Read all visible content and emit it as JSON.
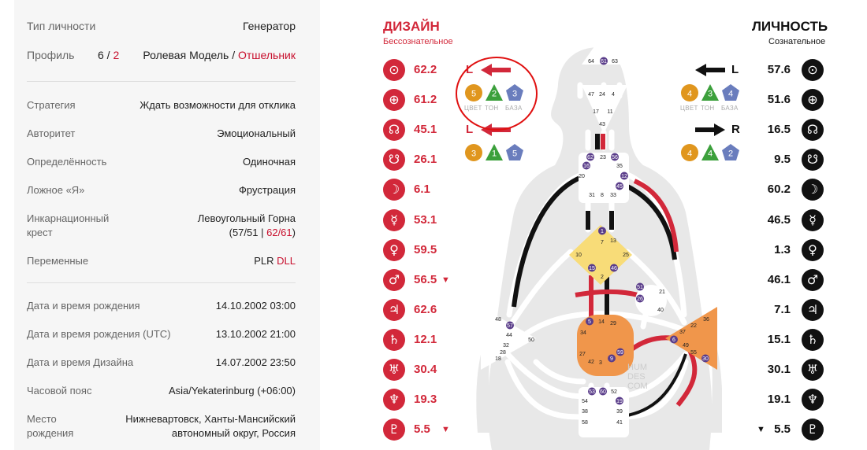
{
  "info": {
    "type_label": "Тип личности",
    "type_value": "Генератор",
    "profile_label": "Профиль",
    "profile_num_a": "6",
    "profile_slash": " / ",
    "profile_num_b": "2",
    "profile_name_a": "Ролевая Модель",
    "profile_name_sep": " / ",
    "profile_name_b": "Отшельник",
    "strategy_label": "Стратегия",
    "strategy_value": "Ждать возможности для отклика",
    "authority_label": "Авторитет",
    "authority_value": "Эмоциональный",
    "definition_label": "Определённость",
    "definition_value": "Одиночная",
    "notself_label": "Ложное «Я»",
    "notself_value": "Фрустрация",
    "cross_label_1": "Инкарнационный",
    "cross_label_2": "крест",
    "cross_value_1": "Левоугольный Горна",
    "cross_paren_open": "(",
    "cross_gates_a": "57/51",
    "cross_bar": " | ",
    "cross_gates_b": "62/61",
    "cross_paren_close": ")",
    "variables_label": "Переменные",
    "variables_a": "PLR",
    "variables_b": "DLL",
    "birth_label": "Дата и время рождения",
    "birth_value": "14.10.2002 03:00",
    "birth_utc_label": "Дата и время рождения (UTC)",
    "birth_utc_value": "13.10.2002 21:00",
    "design_time_label": "Дата и время Дизайна",
    "design_time_value": "14.07.2002 23:50",
    "tz_label": "Часовой пояс",
    "tz_value": "Asia/Yekaterinburg (+06:00)",
    "place_label_1": "Место",
    "place_label_2": "рождения",
    "place_value_1": "Нижневартовск, Ханты-Мансийский",
    "place_value_2": "автономный округ, Россия"
  },
  "design": {
    "title": "ДИЗАЙН",
    "subtitle": "Бессознательное",
    "color": "#d2283a",
    "planets": [
      {
        "icon": "sun-icon",
        "value": "62.2"
      },
      {
        "icon": "earth-icon",
        "value": "61.2"
      },
      {
        "icon": "north-node-icon",
        "value": "45.1"
      },
      {
        "icon": "south-node-icon",
        "value": "26.1"
      },
      {
        "icon": "moon-icon",
        "value": "6.1"
      },
      {
        "icon": "mercury-icon",
        "value": "53.1"
      },
      {
        "icon": "venus-icon",
        "value": "59.5"
      },
      {
        "icon": "mars-icon",
        "value": "56.5",
        "marker": "▼"
      },
      {
        "icon": "jupiter-icon",
        "value": "62.6"
      },
      {
        "icon": "saturn-icon",
        "value": "12.1"
      },
      {
        "icon": "uranus-icon",
        "value": "30.4"
      },
      {
        "icon": "neptune-icon",
        "value": "19.3"
      },
      {
        "icon": "pluto-icon",
        "value": "5.5",
        "marker": "▼"
      }
    ],
    "arrow_top": {
      "letter": "L",
      "color_num": "5",
      "tone_num": "2",
      "base_num": "3"
    },
    "arrow_bottom": {
      "letter": "L",
      "color_num": "3",
      "tone_num": "1",
      "base_num": "5"
    },
    "badge_labels": [
      "ЦВЕТ",
      "ТОН",
      "БАЗА"
    ]
  },
  "personality": {
    "title": "ЛИЧНОСТЬ",
    "subtitle": "Сознательное",
    "color": "#111111",
    "planets": [
      {
        "icon": "sun-icon",
        "value": "57.6"
      },
      {
        "icon": "earth-icon",
        "value": "51.6"
      },
      {
        "icon": "north-node-icon",
        "value": "16.5"
      },
      {
        "icon": "south-node-icon",
        "value": "9.5"
      },
      {
        "icon": "moon-icon",
        "value": "60.2"
      },
      {
        "icon": "mercury-icon",
        "value": "46.5"
      },
      {
        "icon": "venus-icon",
        "value": "1.3"
      },
      {
        "icon": "mars-icon",
        "value": "46.1"
      },
      {
        "icon": "jupiter-icon",
        "value": "7.1"
      },
      {
        "icon": "saturn-icon",
        "value": "15.1"
      },
      {
        "icon": "uranus-icon",
        "value": "30.1"
      },
      {
        "icon": "neptune-icon",
        "value": "19.1"
      },
      {
        "icon": "pluto-icon",
        "value": "5.5",
        "marker": "▼"
      }
    ],
    "arrow_top": {
      "letter": "L",
      "color_num": "4",
      "tone_num": "3",
      "base_num": "4"
    },
    "arrow_bottom": {
      "letter": "R",
      "color_num": "4",
      "tone_num": "4",
      "base_num": "2"
    },
    "badge_labels": [
      "ЦВЕТ",
      "ТОН",
      "БАЗА"
    ]
  },
  "bodygraph": {
    "watermark_1": "HUM",
    "watermark_2": "DES",
    "watermark_3": "COM",
    "colors": {
      "design": "#d2283a",
      "personality": "#111111",
      "sacral": "#f0964b",
      "g_center": "#f8dc78",
      "badge_orange": "#e0961e",
      "badge_green": "#3ca03c",
      "badge_blue": "#6a7dbd"
    },
    "head_gates": [
      "64",
      "61",
      "63"
    ],
    "ajna_gates": [
      "47",
      "24",
      "4",
      "17",
      "11",
      "43"
    ],
    "throat_gates": [
      "62",
      "23",
      "56",
      "16",
      "35",
      "20",
      "12",
      "45",
      "31",
      "8",
      "33"
    ],
    "g_gates": [
      "1",
      "7",
      "13",
      "10",
      "25",
      "15",
      "46",
      "2"
    ],
    "heart_gates": [
      "51",
      "21",
      "26",
      "40"
    ],
    "spleen_gates": [
      "48",
      "57",
      "44",
      "50",
      "32",
      "28",
      "18"
    ],
    "sacral_gates": [
      "5",
      "14",
      "29",
      "34",
      "27",
      "59",
      "42",
      "3",
      "9"
    ],
    "solar_gates": [
      "36",
      "22",
      "37",
      "6",
      "49",
      "55",
      "30"
    ],
    "root_gates": [
      "53",
      "60",
      "52",
      "54",
      "19",
      "38",
      "39",
      "58",
      "41"
    ]
  }
}
